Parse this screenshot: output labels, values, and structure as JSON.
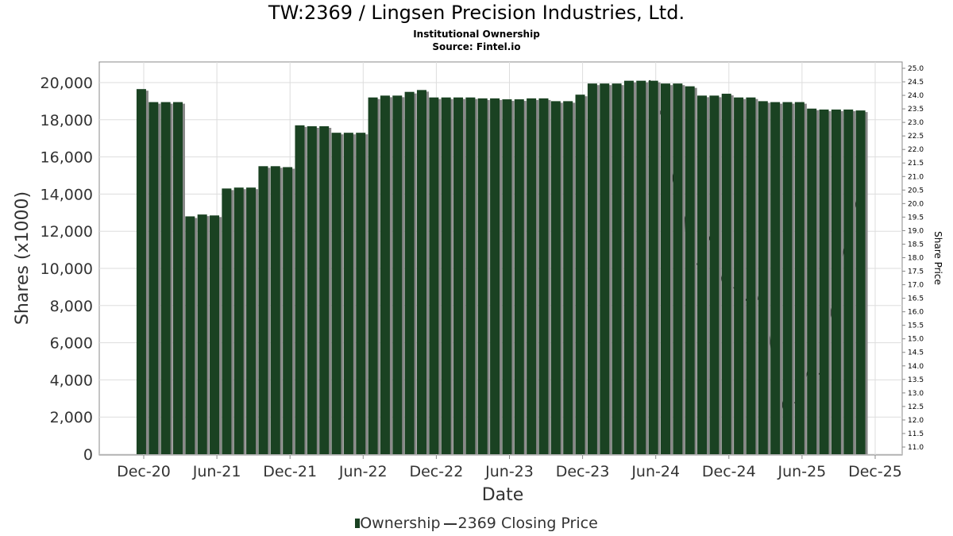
{
  "title": "TW:2369 / Lingsen Precision Industries, Ltd.",
  "subtitle": "Institutional Ownership",
  "source": "Source: Fintel.io",
  "legend": {
    "ownership": "Ownership",
    "price": "2369 Closing Price"
  },
  "colors": {
    "bar": "#1a4222",
    "shadow": "#888888",
    "line": "#000000"
  },
  "chart_data": {
    "type": "bar",
    "title": "TW:2369 / Lingsen Precision Industries, Ltd.",
    "xlabel": "Date",
    "ylabel": "Shares (x1000)",
    "y2label": "Share Price",
    "ylim": [
      0,
      20000
    ],
    "y2lim": [
      10.8,
      25.2
    ],
    "xticks": [
      "Dec-20",
      "Jun-21",
      "Dec-21",
      "Jun-22",
      "Dec-22",
      "Jun-23",
      "Dec-23",
      "Jun-24",
      "Dec-24",
      "Jun-25",
      "Dec-25"
    ],
    "yticks": [
      "0",
      "2,000",
      "4,000",
      "6,000",
      "8,000",
      "10,000",
      "12,000",
      "14,000",
      "16,000",
      "18,000",
      "20,000"
    ],
    "y2ticks": [
      "11.0",
      "11.5",
      "12.0",
      "12.5",
      "13.0",
      "13.5",
      "14.0",
      "14.5",
      "15.0",
      "15.5",
      "16.0",
      "16.5",
      "17.0",
      "17.5",
      "18.0",
      "18.5",
      "19.0",
      "19.5",
      "20.0",
      "20.5",
      "21.0",
      "21.5",
      "22.0",
      "22.5",
      "23.0",
      "23.5",
      "24.0",
      "24.5",
      "25.0"
    ],
    "series": [
      {
        "name": "Ownership",
        "type": "bar",
        "x_months_from_dec20": "index",
        "values": [
          19650,
          18950,
          18950,
          18950,
          12800,
          12900,
          12850,
          14300,
          14350,
          14350,
          15500,
          15500,
          15450,
          17700,
          17650,
          17650,
          17300,
          17300,
          17300,
          19200,
          19300,
          19300,
          19500,
          19600,
          19200,
          19200,
          19200,
          19200,
          19150,
          19150,
          19100,
          19100,
          19150,
          19150,
          19000,
          19000,
          19350,
          19950,
          19950,
          19950,
          20100,
          20100,
          20100,
          19950,
          19950,
          19800,
          19300,
          19300,
          19400,
          19200,
          19200,
          19000,
          18950,
          18950,
          18950,
          18600,
          18550,
          18550,
          18550,
          18500
        ]
      },
      {
        "name": "2369 Closing Price",
        "type": "line",
        "x": [
          41.5,
          42.6,
          43.6,
          44.4,
          44.6,
          45.6,
          46.6,
          46.6,
          47.5,
          48.6,
          49.6,
          50.4,
          50.7,
          51.5,
          52.5,
          52.6,
          53.6,
          54.6,
          55.6,
          56.7,
          57.5,
          58.6
        ],
        "values": [
          24.56,
          23.09,
          20.42,
          19.45,
          18.16,
          17.66,
          18.98,
          18.45,
          17.08,
          16.84,
          16.34,
          16.46,
          17.02,
          14.58,
          12.32,
          12.64,
          12.64,
          13.96,
          13.64,
          16.84,
          18.4,
          20.33
        ]
      }
    ]
  }
}
